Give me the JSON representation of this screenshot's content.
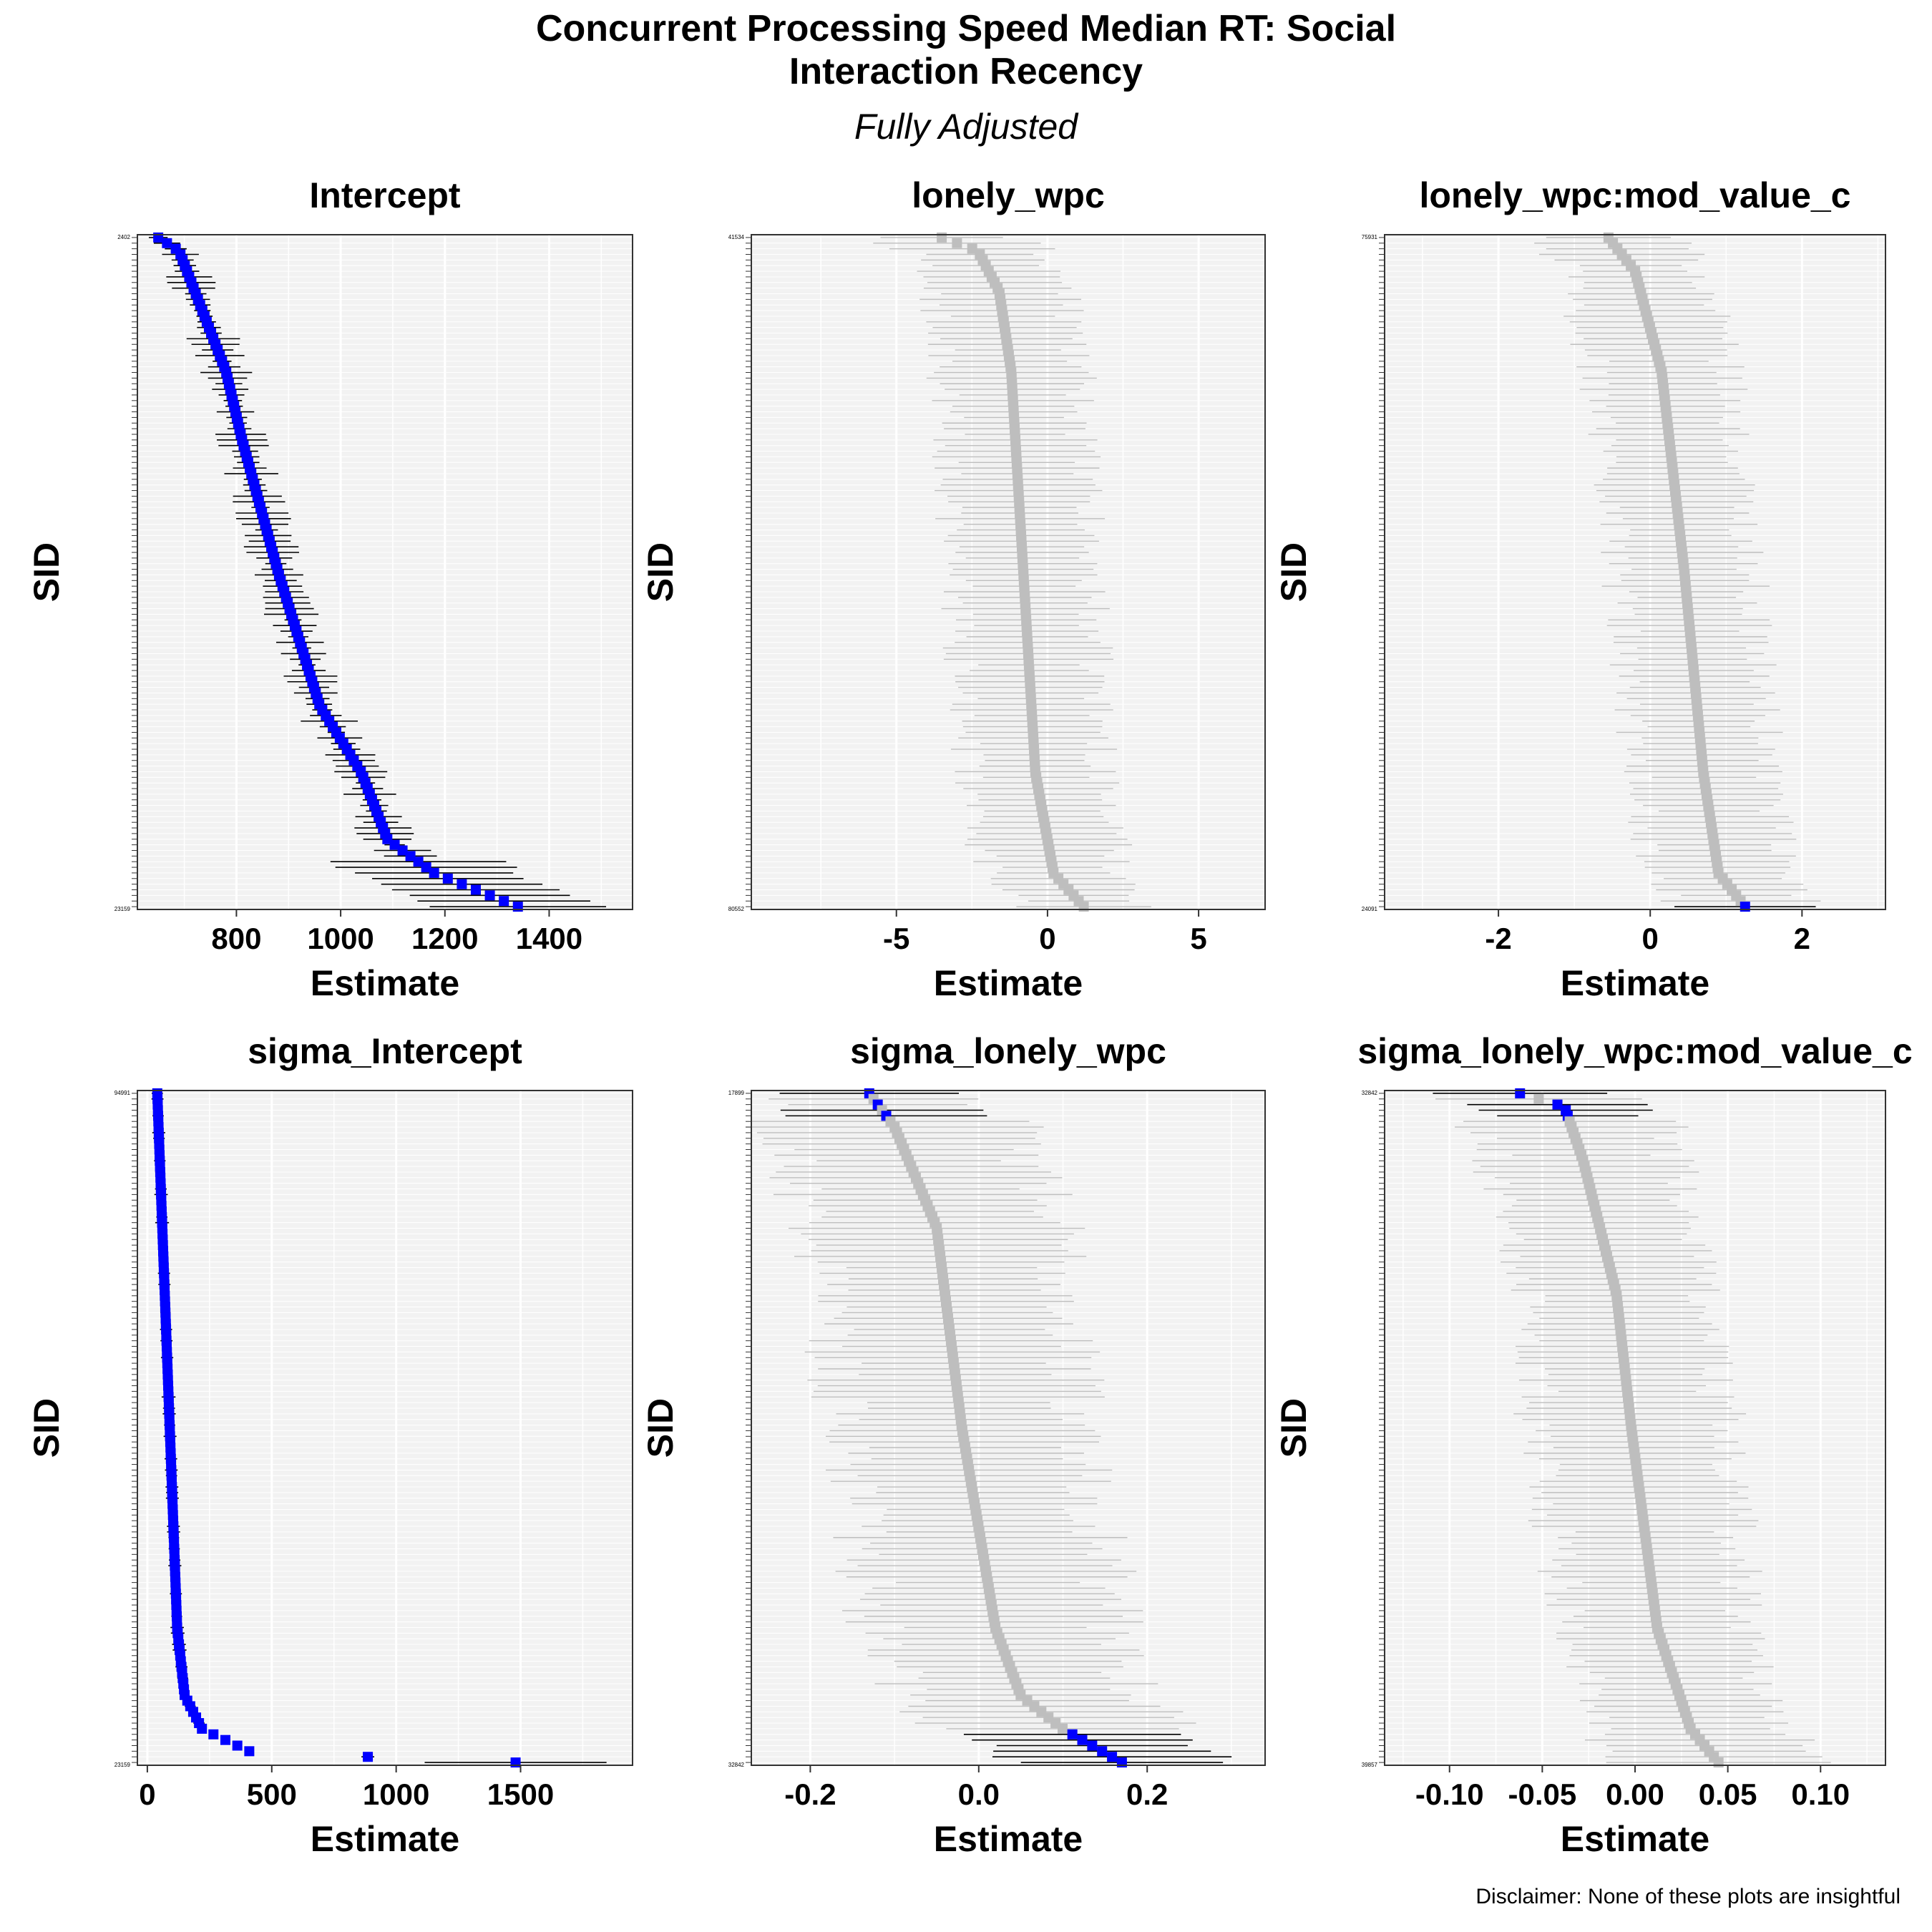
{
  "title_line1": "Concurrent Processing Speed Median RT: Social",
  "title_line2": "Interaction Recency",
  "subtitle": "Fully Adjusted",
  "disclaimer": "Disclaimer: None of these plots are insightful",
  "colors": {
    "highlight": "#0000ff",
    "muted": "#bebebe",
    "panel_bg": "#f2f2f2",
    "grid": "#ffffff",
    "interval": "#000000"
  },
  "chart_data": [
    {
      "type": "scatter",
      "subtype": "caterpillar",
      "title": "Intercept",
      "xlabel": "Estimate",
      "ylabel": "SID",
      "xlim": [
        610,
        1560
      ],
      "xticks": [
        800,
        1000,
        1200,
        1400
      ],
      "n_subjects": 120,
      "estimate_range": [
        650,
        1340
      ],
      "estimate_curve": [
        [
          0,
          650
        ],
        [
          0.02,
          690
        ],
        [
          0.1,
          730
        ],
        [
          0.2,
          780
        ],
        [
          0.3,
          810
        ],
        [
          0.4,
          845
        ],
        [
          0.5,
          880
        ],
        [
          0.6,
          920
        ],
        [
          0.7,
          960
        ],
        [
          0.8,
          1040
        ],
        [
          0.9,
          1090
        ],
        [
          0.95,
          1180
        ],
        [
          1,
          1340
        ]
      ],
      "highlighted": "all",
      "first_row_label": "2402",
      "last_row_label": "23159"
    },
    {
      "type": "scatter",
      "subtype": "caterpillar",
      "title": "lonely_wpc",
      "xlabel": "Estimate",
      "ylabel": "SID",
      "xlim": [
        -9.8,
        7.2
      ],
      "xticks": [
        -5,
        0,
        5
      ],
      "n_subjects": 120,
      "estimate_range": [
        -3.5,
        1.2
      ],
      "estimate_curve": [
        [
          0,
          -3.5
        ],
        [
          0.02,
          -2.3
        ],
        [
          0.08,
          -1.6
        ],
        [
          0.2,
          -1.2
        ],
        [
          0.5,
          -0.8
        ],
        [
          0.8,
          -0.4
        ],
        [
          0.95,
          0.2
        ],
        [
          1,
          1.2
        ]
      ],
      "highlighted": "none",
      "first_row_label": "41534",
      "last_row_label": "80552"
    },
    {
      "type": "scatter",
      "subtype": "caterpillar",
      "title": "lonely_wpc:mod_value_c",
      "xlabel": "Estimate",
      "ylabel": "SID",
      "xlim": [
        -3.5,
        3.1
      ],
      "xticks": [
        -2,
        0,
        2
      ],
      "n_subjects": 120,
      "estimate_range": [
        -0.6,
        1.25
      ],
      "estimate_curve": [
        [
          0,
          -0.55
        ],
        [
          0.05,
          -0.2
        ],
        [
          0.2,
          0.15
        ],
        [
          0.5,
          0.45
        ],
        [
          0.8,
          0.7
        ],
        [
          0.95,
          0.9
        ],
        [
          1,
          1.25
        ]
      ],
      "highlighted": "last",
      "first_row_label": "75931",
      "last_row_label": "24091"
    },
    {
      "type": "scatter",
      "subtype": "caterpillar",
      "title": "sigma_Intercept",
      "xlabel": "Estimate",
      "ylabel": "SID",
      "xlim": [
        -40,
        1950
      ],
      "xticks": [
        0,
        500,
        1000,
        1500
      ],
      "n_subjects": 120,
      "estimate_range": [
        40,
        1480
      ],
      "estimate_curve": [
        [
          0,
          40
        ],
        [
          0.5,
          90
        ],
        [
          0.8,
          120
        ],
        [
          0.9,
          150
        ],
        [
          0.95,
          220
        ],
        [
          0.985,
          420
        ],
        [
          1,
          1480
        ]
      ],
      "highlighted": "all",
      "first_row_label": "94991",
      "last_row_label": "23159"
    },
    {
      "type": "scatter",
      "subtype": "caterpillar",
      "title": "sigma_lonely_wpc",
      "xlabel": "Estimate",
      "ylabel": "SID",
      "xlim": [
        -0.27,
        0.34
      ],
      "xticks": [
        -0.2,
        0.0,
        0.2
      ],
      "n_subjects": 120,
      "estimate_range": [
        -0.13,
        0.17
      ],
      "estimate_curve": [
        [
          0,
          -0.13
        ],
        [
          0.05,
          -0.1
        ],
        [
          0.2,
          -0.05
        ],
        [
          0.5,
          -0.02
        ],
        [
          0.8,
          0.02
        ],
        [
          0.9,
          0.05
        ],
        [
          0.95,
          0.1
        ],
        [
          1,
          0.17
        ]
      ],
      "highlighted": "extremes",
      "first_row_label": "17899",
      "last_row_label": "32842"
    },
    {
      "type": "scatter",
      "subtype": "caterpillar",
      "title": "sigma_lonely_wpc:mod_value_c",
      "xlabel": "Estimate",
      "ylabel": "SID",
      "xlim": [
        -0.135,
        0.135
      ],
      "xticks": [
        -0.1,
        -0.05,
        0.0,
        0.05,
        0.1
      ],
      "n_subjects": 120,
      "estimate_range": [
        -0.06,
        0.045
      ],
      "estimate_curve": [
        [
          0,
          -0.062
        ],
        [
          0.02,
          -0.038
        ],
        [
          0.1,
          -0.028
        ],
        [
          0.3,
          -0.01
        ],
        [
          0.5,
          -0.002
        ],
        [
          0.8,
          0.012
        ],
        [
          0.95,
          0.03
        ],
        [
          1,
          0.045
        ]
      ],
      "highlighted": "top",
      "first_row_label": "32842",
      "last_row_label": "39857"
    }
  ]
}
